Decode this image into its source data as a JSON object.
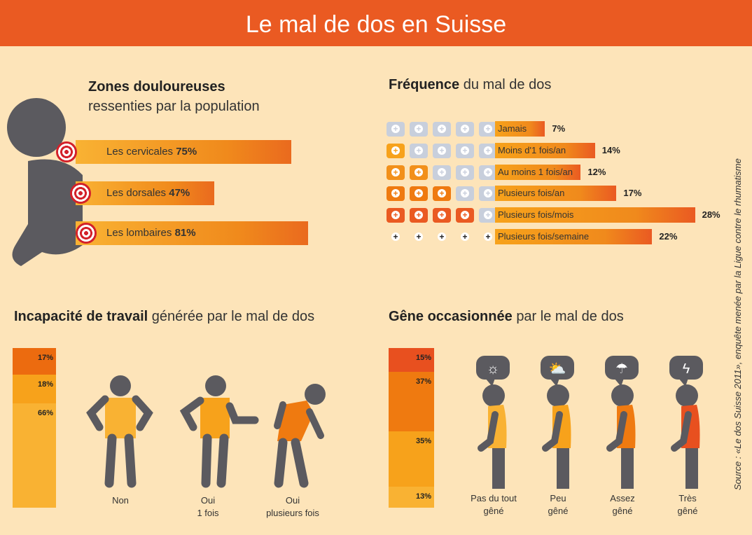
{
  "title": "Le mal de dos en Suisse",
  "colors": {
    "banner": "#ea5a22",
    "background": "#fde4b9",
    "figure": "#5b5a5f",
    "light": "#f9b233",
    "mid": "#f7a21b",
    "orange": "#ef7a10",
    "red": "#e8501f"
  },
  "source": "Source : «Le dos Suisse 2011», enquête menée par la Ligue contre le rhumatisme",
  "chart_data": [
    {
      "type": "bar",
      "title_bold": "Zones douloureuses",
      "title_rest": "ressenties par la population",
      "categories": [
        "Les cervicales",
        "Les dorsales",
        "Les lombaires"
      ],
      "values": [
        75,
        47,
        81
      ],
      "labels": [
        "75%",
        "47%",
        "81%"
      ]
    },
    {
      "type": "bar",
      "title_bold": "Fréquence",
      "title_rest": "du mal de dos",
      "categories": [
        "Jamais",
        "Moins d'1 fois/an",
        "Au moins 1 fois/an",
        "Plusieurs fois/an",
        "Plusieurs fois/mois",
        "Plusieurs fois/semaine"
      ],
      "values": [
        7,
        14,
        12,
        17,
        28,
        22
      ],
      "labels": [
        "7%",
        "14%",
        "12%",
        "17%",
        "28%",
        "22%"
      ],
      "icon": "first-aid-kit-icon"
    },
    {
      "type": "bar",
      "stacked": true,
      "title_bold": "Incapacité de travail",
      "title_rest": "générée par le mal de dos",
      "categories": [
        "Oui plusieurs fois",
        "Oui 1 fois",
        "Non"
      ],
      "captions": [
        [
          "Non"
        ],
        [
          "Oui",
          "1 fois"
        ],
        [
          "Oui",
          "plusieurs fois"
        ]
      ],
      "values": [
        17,
        18,
        66
      ],
      "labels": [
        "17%",
        "18%",
        "66%"
      ]
    },
    {
      "type": "bar",
      "stacked": true,
      "title_bold": "Gêne occasionnée",
      "title_rest": "par le mal de dos",
      "categories": [
        "Très gêné",
        "Assez gêné",
        "Peu gêné",
        "Pas du tout gêné"
      ],
      "captions": [
        [
          "Pas du tout",
          "gêné"
        ],
        [
          "Peu",
          "gêné"
        ],
        [
          "Assez",
          "gêné"
        ],
        [
          "Très",
          "gêné"
        ]
      ],
      "values": [
        15,
        37,
        35,
        13
      ],
      "labels": [
        "15%",
        "37%",
        "35%",
        "13%"
      ],
      "icons": [
        "sun-icon",
        "sun-cloud-icon",
        "rain-cloud-icon",
        "storm-cloud-icon"
      ]
    }
  ]
}
